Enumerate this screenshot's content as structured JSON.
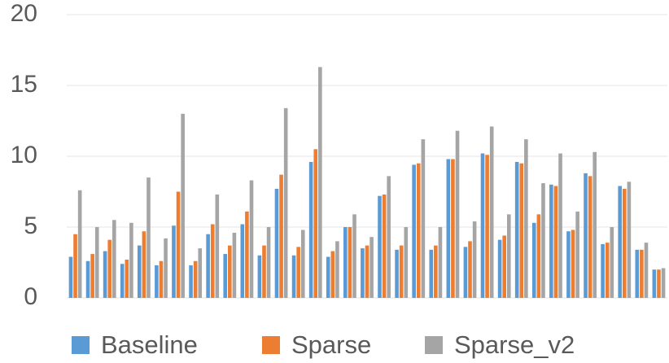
{
  "chart_data": {
    "type": "bar",
    "categories": [
      null,
      null,
      null,
      null,
      null,
      null,
      null,
      null,
      null,
      null,
      null,
      null,
      null,
      null,
      null,
      null,
      null,
      null,
      null,
      null,
      null,
      null,
      null,
      null,
      null,
      null,
      null,
      null,
      null,
      null,
      null,
      null,
      null,
      null,
      null
    ],
    "series": [
      {
        "name": "Baseline",
        "color": "#5b9bd5",
        "values": [
          2.9,
          2.6,
          3.3,
          2.4,
          3.7,
          2.3,
          5.1,
          2.3,
          4.5,
          3.1,
          5.2,
          3.0,
          7.7,
          3.0,
          9.6,
          2.9,
          5.0,
          3.5,
          7.2,
          3.4,
          9.4,
          3.4,
          9.8,
          3.6,
          10.2,
          4.1,
          9.6,
          5.3,
          8.0,
          4.7,
          8.8,
          3.8,
          7.9,
          3.4,
          2.0
        ]
      },
      {
        "name": "Sparse",
        "color": "#ed7d31",
        "values": [
          4.5,
          3.1,
          4.1,
          2.7,
          4.7,
          2.6,
          7.5,
          2.6,
          5.2,
          3.7,
          6.1,
          3.7,
          8.7,
          3.6,
          10.5,
          3.3,
          5.0,
          3.7,
          7.3,
          3.7,
          9.5,
          3.7,
          9.8,
          4.0,
          10.1,
          4.4,
          9.5,
          5.9,
          7.9,
          4.8,
          8.6,
          3.9,
          7.7,
          3.4,
          2.0
        ]
      },
      {
        "name": "Sparse_v2",
        "color": "#a5a5a5",
        "values": [
          7.6,
          5.0,
          5.5,
          5.3,
          8.5,
          4.2,
          13.0,
          3.5,
          7.3,
          4.6,
          8.3,
          5.0,
          13.4,
          4.8,
          16.3,
          4.0,
          5.9,
          4.3,
          8.6,
          5.0,
          11.2,
          5.0,
          11.8,
          5.4,
          12.1,
          5.9,
          11.2,
          8.1,
          10.2,
          6.1,
          10.3,
          5.0,
          8.2,
          3.9,
          2.1
        ]
      }
    ],
    "ylim": [
      0,
      20
    ],
    "yticks": [
      0,
      5,
      10,
      15,
      20
    ],
    "grid": true,
    "legend": "bottom"
  }
}
